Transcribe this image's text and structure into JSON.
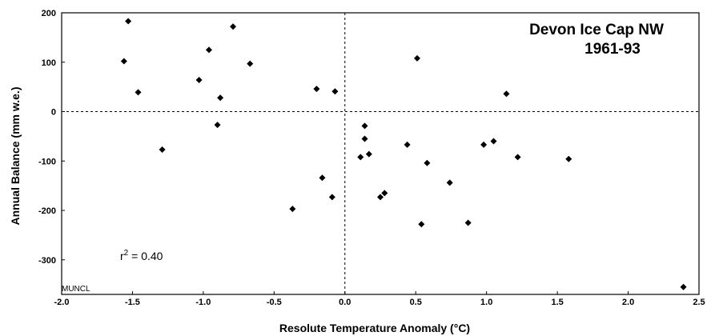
{
  "chart_data": {
    "type": "scatter",
    "title": "Devon Ice Cap NW",
    "subtitle": "1961-93",
    "xlabel": "Resolute Temperature Anomaly (°C)",
    "ylabel": "Annual Balance (mm w.e.)",
    "xlim": [
      -2.0,
      2.5
    ],
    "ylim": [
      -370,
      200
    ],
    "x_ticks": [
      "-2.0",
      "-1.5",
      "-1.0",
      "-0.5",
      "0.0",
      "0.5",
      "1.0",
      "1.5",
      "2.0",
      "2.5"
    ],
    "y_ticks": [
      "200",
      "100",
      "0",
      "-100",
      "-200",
      "-300"
    ],
    "reference_lines": {
      "x": 0,
      "y": 0,
      "style": "dashed"
    },
    "annotation_prefix": "r",
    "annotation_sup": "2",
    "annotation_value": " = 0.40",
    "credit": "MUNCL",
    "grid": false,
    "points": [
      {
        "x": -1.56,
        "y": 102
      },
      {
        "x": -1.53,
        "y": 183
      },
      {
        "x": -1.46,
        "y": 39
      },
      {
        "x": -1.29,
        "y": -77
      },
      {
        "x": -1.03,
        "y": 64
      },
      {
        "x": -0.96,
        "y": 125
      },
      {
        "x": -0.9,
        "y": -27
      },
      {
        "x": -0.88,
        "y": 28
      },
      {
        "x": -0.79,
        "y": 172
      },
      {
        "x": -0.67,
        "y": 97
      },
      {
        "x": -0.37,
        "y": -197
      },
      {
        "x": -0.2,
        "y": 46
      },
      {
        "x": -0.16,
        "y": -134
      },
      {
        "x": -0.09,
        "y": -173
      },
      {
        "x": -0.07,
        "y": 41
      },
      {
        "x": 0.11,
        "y": -92
      },
      {
        "x": 0.14,
        "y": -29
      },
      {
        "x": 0.14,
        "y": -55
      },
      {
        "x": 0.17,
        "y": -86
      },
      {
        "x": 0.25,
        "y": -173
      },
      {
        "x": 0.28,
        "y": -165
      },
      {
        "x": 0.44,
        "y": -67
      },
      {
        "x": 0.51,
        "y": 108
      },
      {
        "x": 0.54,
        "y": -228
      },
      {
        "x": 0.58,
        "y": -104
      },
      {
        "x": 0.74,
        "y": -144
      },
      {
        "x": 0.87,
        "y": -225
      },
      {
        "x": 0.98,
        "y": -67
      },
      {
        "x": 1.05,
        "y": -60
      },
      {
        "x": 1.14,
        "y": 36
      },
      {
        "x": 1.22,
        "y": -92
      },
      {
        "x": 1.58,
        "y": -96
      },
      {
        "x": 2.39,
        "y": -355
      }
    ]
  }
}
